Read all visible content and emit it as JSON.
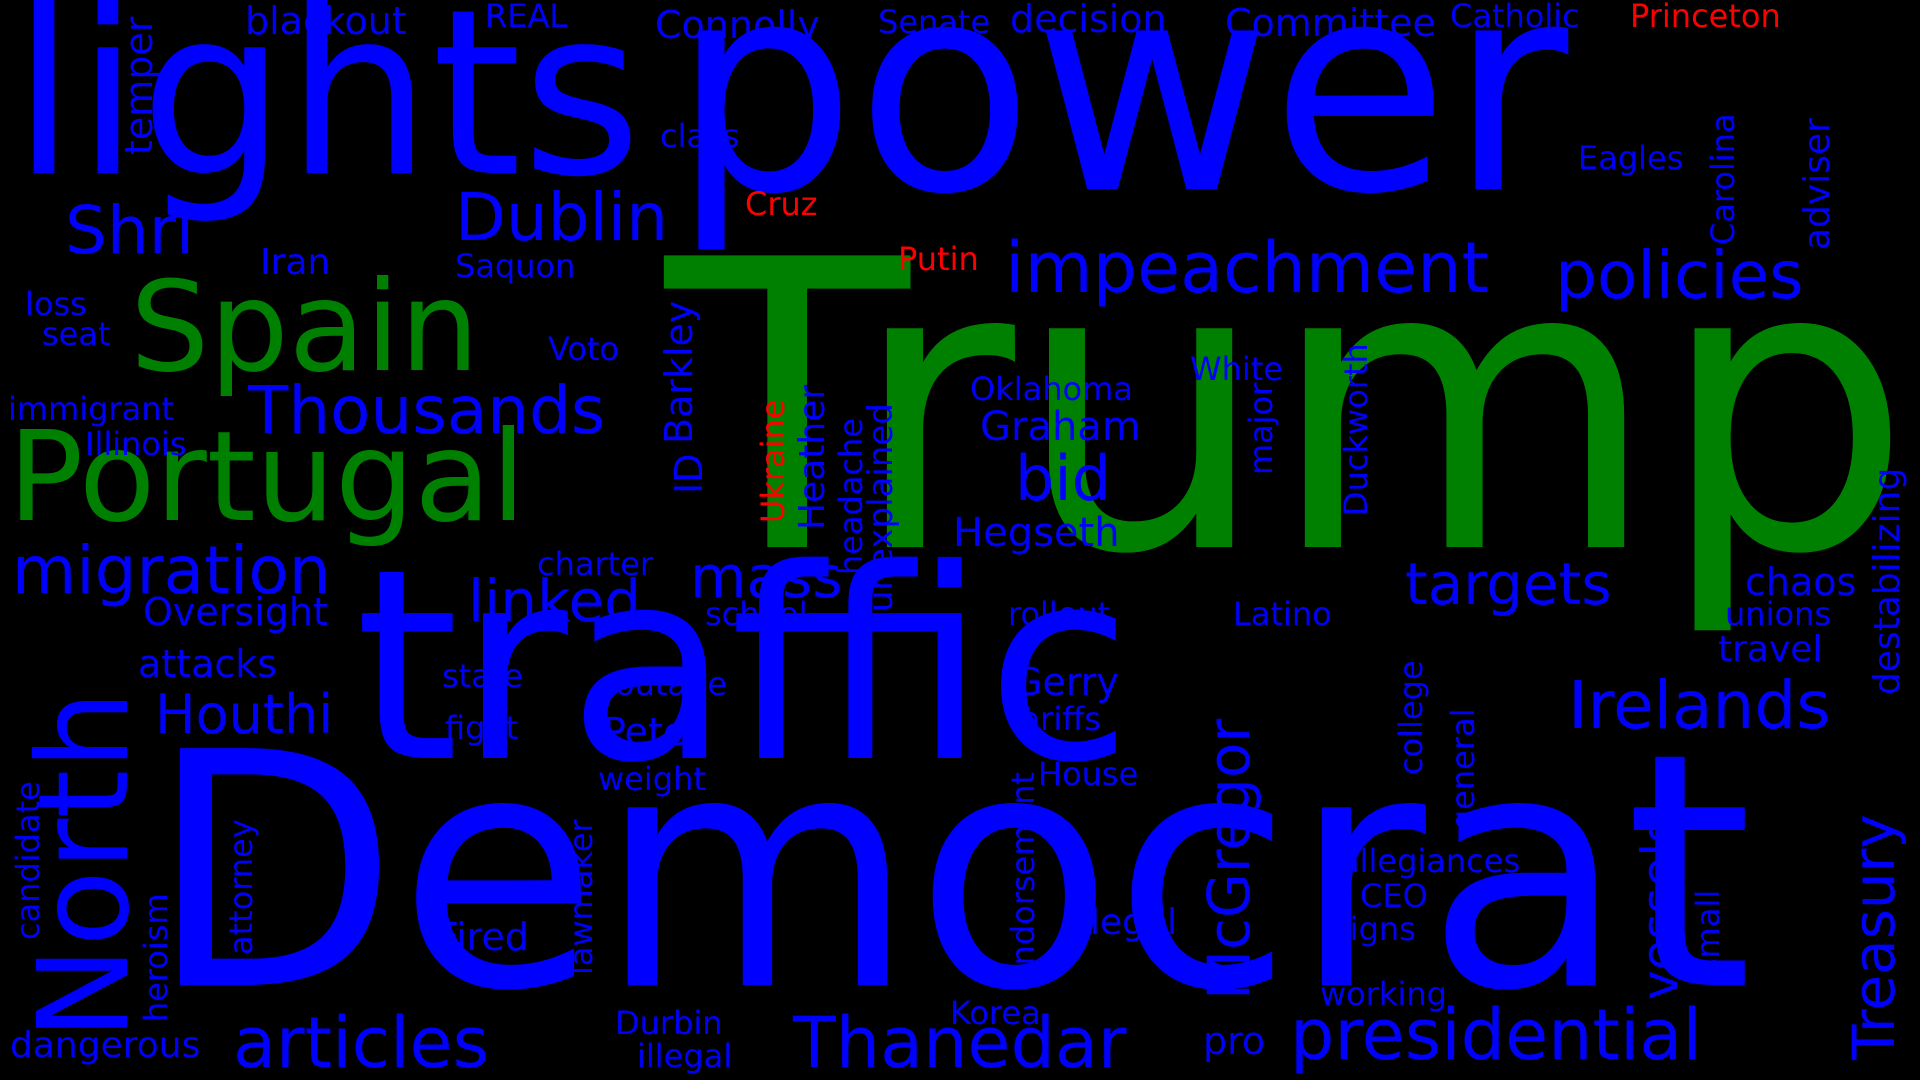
{
  "colors": {
    "background": "#000000",
    "blue": "#0000ff",
    "green": "#008000",
    "red": "#ff0000"
  },
  "words": [
    {
      "text": "lights",
      "color": "blue"
    },
    {
      "text": "power",
      "color": "blue"
    },
    {
      "text": "Trump",
      "color": "green"
    },
    {
      "text": "traffic",
      "color": "blue"
    },
    {
      "text": "Democrat",
      "color": "blue"
    },
    {
      "text": "Spain",
      "color": "green"
    },
    {
      "text": "Portugal",
      "color": "green"
    },
    {
      "text": "North",
      "color": "blue"
    },
    {
      "text": "Dublin",
      "color": "blue"
    },
    {
      "text": "Shri",
      "color": "blue"
    },
    {
      "text": "impeachment",
      "color": "blue"
    },
    {
      "text": "policies",
      "color": "blue"
    },
    {
      "text": "Thousands",
      "color": "blue"
    },
    {
      "text": "migration",
      "color": "blue"
    },
    {
      "text": "mass",
      "color": "blue"
    },
    {
      "text": "linked",
      "color": "blue"
    },
    {
      "text": "targets",
      "color": "blue"
    },
    {
      "text": "Irelands",
      "color": "blue"
    },
    {
      "text": "articles",
      "color": "blue"
    },
    {
      "text": "Thanedar",
      "color": "blue"
    },
    {
      "text": "presidential",
      "color": "blue"
    },
    {
      "text": "McGregor",
      "color": "blue"
    },
    {
      "text": "vessels",
      "color": "blue"
    },
    {
      "text": "Treasury",
      "color": "blue"
    },
    {
      "text": "Houthi",
      "color": "blue"
    },
    {
      "text": "bid",
      "color": "blue"
    },
    {
      "text": "Hegseth",
      "color": "blue"
    },
    {
      "text": "Graham",
      "color": "blue"
    },
    {
      "text": "Oklahoma",
      "color": "blue"
    },
    {
      "text": "White",
      "color": "blue"
    },
    {
      "text": "blackout",
      "color": "blue"
    },
    {
      "text": "REAL",
      "color": "blue"
    },
    {
      "text": "Connolly",
      "color": "blue"
    },
    {
      "text": "Senate",
      "color": "blue"
    },
    {
      "text": "decision",
      "color": "blue"
    },
    {
      "text": "Committee",
      "color": "blue"
    },
    {
      "text": "Catholic",
      "color": "blue"
    },
    {
      "text": "Princeton",
      "color": "red"
    },
    {
      "text": "Cruz",
      "color": "red"
    },
    {
      "text": "Putin",
      "color": "red"
    },
    {
      "text": "Ukraine",
      "color": "red"
    },
    {
      "text": "class",
      "color": "blue"
    },
    {
      "text": "Eagles",
      "color": "blue"
    },
    {
      "text": "Carolina",
      "color": "blue"
    },
    {
      "text": "adviser",
      "color": "blue"
    },
    {
      "text": "temper",
      "color": "blue"
    },
    {
      "text": "Iran",
      "color": "blue"
    },
    {
      "text": "Saquon",
      "color": "blue"
    },
    {
      "text": "loss",
      "color": "blue"
    },
    {
      "text": "seat",
      "color": "blue"
    },
    {
      "text": "Voto",
      "color": "blue"
    },
    {
      "text": "immigrant",
      "color": "blue"
    },
    {
      "text": "Illinois",
      "color": "blue"
    },
    {
      "text": "ID",
      "color": "blue"
    },
    {
      "text": "Barkley",
      "color": "blue"
    },
    {
      "text": "Heather",
      "color": "blue"
    },
    {
      "text": "headache",
      "color": "blue"
    },
    {
      "text": "unexplained",
      "color": "blue"
    },
    {
      "text": "Duckworth",
      "color": "blue"
    },
    {
      "text": "major",
      "color": "blue"
    },
    {
      "text": "destabilizing",
      "color": "blue"
    },
    {
      "text": "charter",
      "color": "blue"
    },
    {
      "text": "school",
      "color": "blue"
    },
    {
      "text": "Oversight",
      "color": "blue"
    },
    {
      "text": "rollout",
      "color": "blue"
    },
    {
      "text": "Latino",
      "color": "blue"
    },
    {
      "text": "chaos",
      "color": "blue"
    },
    {
      "text": "unions",
      "color": "blue"
    },
    {
      "text": "travel",
      "color": "blue"
    },
    {
      "text": "attacks",
      "color": "blue"
    },
    {
      "text": "state",
      "color": "blue"
    },
    {
      "text": "outage",
      "color": "blue"
    },
    {
      "text": "Gerry",
      "color": "blue"
    },
    {
      "text": "fight",
      "color": "blue"
    },
    {
      "text": "tariffs",
      "color": "blue"
    },
    {
      "text": "Petes",
      "color": "blue"
    },
    {
      "text": "college",
      "color": "blue"
    },
    {
      "text": "weight",
      "color": "blue"
    },
    {
      "text": "House",
      "color": "blue"
    },
    {
      "text": "general",
      "color": "blue"
    },
    {
      "text": "candidate",
      "color": "blue"
    },
    {
      "text": "attorney",
      "color": "blue"
    },
    {
      "text": "heroism",
      "color": "blue"
    },
    {
      "text": "lawmaker",
      "color": "blue"
    },
    {
      "text": "endorsement",
      "color": "blue"
    },
    {
      "text": "allegiances",
      "color": "blue"
    },
    {
      "text": "CEO",
      "color": "blue"
    },
    {
      "text": "Fired",
      "color": "blue"
    },
    {
      "text": "legal",
      "color": "blue"
    },
    {
      "text": "signs",
      "color": "blue"
    },
    {
      "text": "small",
      "color": "blue"
    },
    {
      "text": "working",
      "color": "blue"
    },
    {
      "text": "Durbin",
      "color": "blue"
    },
    {
      "text": "Korea",
      "color": "blue"
    },
    {
      "text": "dangerous",
      "color": "blue"
    },
    {
      "text": "illegal",
      "color": "blue"
    },
    {
      "text": "pro",
      "color": "blue"
    }
  ]
}
